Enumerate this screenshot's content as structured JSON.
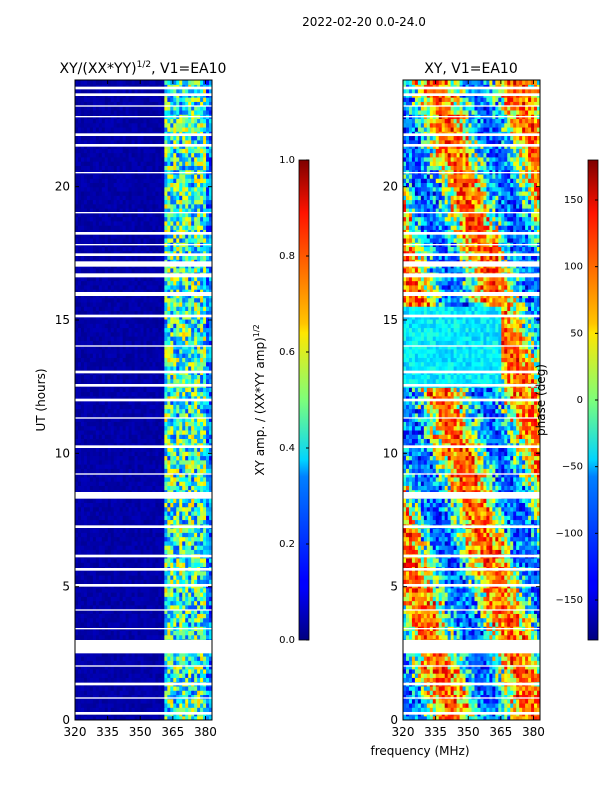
{
  "figure_title": "2022-02-20 0.0-24.0",
  "shared_xlabel": "frequency (MHz)",
  "chart_data": [
    {
      "type": "heatmap",
      "title": "XY/(XX*YY)",
      "title_exponent": "1/2",
      "title_suffix": ", V1=EA10",
      "xlabel": "",
      "ylabel": "UT (hours)",
      "xlim": [
        320,
        383
      ],
      "ylim": [
        0,
        24
      ],
      "x_ticks": [
        320,
        335,
        350,
        365,
        380
      ],
      "y_ticks": [
        0,
        5,
        10,
        15,
        20
      ],
      "colorbar": {
        "label": "XY amp. / (XX*YY amp)",
        "label_exponent": "1/2",
        "range": [
          0.0,
          1.0
        ],
        "ticks": [
          0.0,
          0.2,
          0.4,
          0.6,
          0.8,
          1.0
        ],
        "tick_labels": [
          "0.0",
          "0.2",
          "0.4",
          "0.6",
          "0.8",
          "1.0"
        ],
        "colormap": "jet"
      },
      "description_bands": {
        "low_band_mhz": [
          320,
          361
        ],
        "low_band_value": 0.02,
        "high_band_mhz": [
          361,
          380
        ],
        "high_band_value_range": [
          0.2,
          0.65
        ]
      }
    },
    {
      "type": "heatmap",
      "title": "XY, V1=EA10",
      "xlabel": "",
      "ylabel": "",
      "xlim": [
        320,
        383
      ],
      "ylim": [
        0,
        24
      ],
      "x_ticks": [
        320,
        335,
        350,
        365,
        380
      ],
      "y_ticks": [
        0,
        5,
        10,
        15,
        20
      ],
      "colorbar": {
        "label": "phase (deg)",
        "range": [
          -180,
          180
        ],
        "ticks": [
          -150,
          -100,
          -50,
          0,
          50,
          100,
          150
        ],
        "tick_labels": [
          "−150",
          "−100",
          "−50",
          "0",
          "50",
          "100",
          "150"
        ],
        "colormap": "jet"
      }
    }
  ],
  "data_gaps_hours": [
    [
      0.2,
      0.3
    ],
    [
      0.8,
      0.85
    ],
    [
      1.3,
      1.4
    ],
    [
      2.0,
      2.05
    ],
    [
      2.5,
      3.0
    ],
    [
      3.4,
      3.45
    ],
    [
      4.1,
      4.15
    ],
    [
      5.0,
      5.1
    ],
    [
      5.6,
      5.7
    ],
    [
      6.1,
      6.2
    ],
    [
      7.2,
      7.3
    ],
    [
      8.3,
      8.55
    ],
    [
      9.2,
      9.25
    ],
    [
      10.2,
      10.3
    ],
    [
      11.3,
      11.35
    ],
    [
      11.95,
      12.05
    ],
    [
      12.5,
      12.6
    ],
    [
      13.0,
      13.1
    ],
    [
      14.0,
      14.05
    ],
    [
      15.1,
      15.2
    ],
    [
      15.9,
      16.05
    ],
    [
      16.6,
      16.75
    ],
    [
      17.0,
      17.2
    ],
    [
      17.4,
      17.5
    ],
    [
      17.8,
      17.85
    ],
    [
      18.2,
      18.3
    ],
    [
      19.0,
      19.05
    ],
    [
      20.5,
      20.55
    ],
    [
      21.5,
      21.6
    ],
    [
      21.9,
      22.0
    ],
    [
      22.6,
      22.65
    ],
    [
      23.0,
      23.05
    ],
    [
      23.4,
      23.5
    ],
    [
      23.65,
      23.75
    ]
  ],
  "colors": {
    "jet_low": "#00007f",
    "jet_high": "#7f0000",
    "gap": "#ffffff"
  }
}
